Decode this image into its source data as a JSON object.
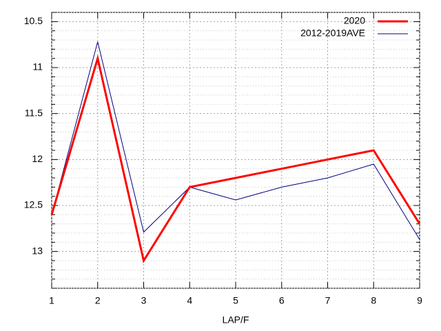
{
  "chart_data": {
    "type": "line",
    "x": [
      1,
      2,
      3,
      4,
      5,
      6,
      7,
      8,
      9
    ],
    "xlim": [
      1,
      9
    ],
    "xticks": [
      1,
      2,
      3,
      4,
      5,
      6,
      7,
      8,
      9
    ],
    "ylim": [
      13.4,
      10.4
    ],
    "yticks": [
      10.5,
      11,
      11.5,
      12,
      12.5,
      13
    ],
    "yminorticks": [
      10.4,
      10.6,
      10.7,
      10.8,
      10.9,
      11.1,
      11.2,
      11.3,
      11.4,
      11.6,
      11.7,
      11.8,
      11.9,
      12.1,
      12.2,
      12.3,
      12.4,
      12.6,
      12.7,
      12.8,
      12.9,
      13.1,
      13.2,
      13.3,
      13.4
    ],
    "xlabel": "LAP/F",
    "grid": true,
    "legend": "top-right",
    "series": [
      {
        "name": "2020",
        "color": "#ff0000",
        "width": 3,
        "values": [
          12.6,
          10.9,
          13.1,
          12.3,
          12.2,
          12.1,
          12.0,
          11.9,
          12.7
        ]
      },
      {
        "name": "2012-2019AVE",
        "color": "#000080",
        "width": 1,
        "values": [
          12.6,
          10.72,
          12.79,
          12.3,
          12.44,
          12.3,
          12.2,
          12.05,
          12.87
        ]
      }
    ]
  }
}
